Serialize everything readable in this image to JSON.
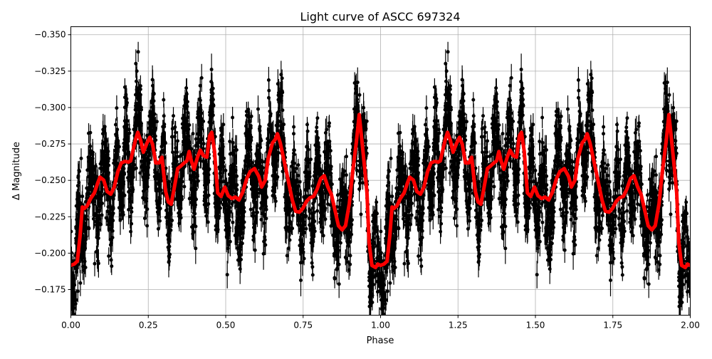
{
  "chart_data": {
    "type": "scatter",
    "title": "Light curve of ASCC 697324",
    "xlabel": "Phase",
    "ylabel": "Δ Magnitude",
    "xlim": [
      0.0,
      2.0
    ],
    "ylim": [
      -0.1574,
      -0.3555
    ],
    "y_inverted": true,
    "grid": true,
    "xticks": [
      "0.00",
      "0.25",
      "0.50",
      "0.75",
      "1.00",
      "1.25",
      "1.50",
      "1.75",
      "2.00"
    ],
    "xtick_values": [
      0,
      0.25,
      0.5,
      0.75,
      1,
      1.25,
      1.5,
      1.75,
      2
    ],
    "yticks": [
      "−0.350",
      "−0.325",
      "−0.300",
      "−0.275",
      "−0.250",
      "−0.225",
      "−0.200",
      "−0.175"
    ],
    "ytick_values": [
      -0.35,
      -0.325,
      -0.3,
      -0.275,
      -0.25,
      -0.225,
      -0.2,
      -0.175
    ],
    "series": [
      {
        "kind": "errorbar-scatter",
        "color": "#000000",
        "description_visible": "dense photometric points with vertical error bars, folded over two phases"
      },
      {
        "kind": "line",
        "color": "#ff0000",
        "x": [
          0,
          0.011,
          0.021,
          0.03,
          0.037,
          0.044,
          0.053,
          0.064,
          0.076,
          0.087,
          0.094,
          0.106,
          0.117,
          0.129,
          0.14,
          0.152,
          0.163,
          0.175,
          0.186,
          0.193,
          0.2,
          0.209,
          0.216,
          0.225,
          0.234,
          0.246,
          0.255,
          0.264,
          0.274,
          0.285,
          0.294,
          0.306,
          0.315,
          0.324,
          0.333,
          0.345,
          0.356,
          0.366,
          0.375,
          0.382,
          0.389,
          0.398,
          0.409,
          0.418,
          0.428,
          0.439,
          0.448,
          0.455,
          0.464,
          0.474,
          0.485,
          0.497,
          0.508,
          0.52,
          0.531,
          0.543,
          0.554,
          0.568,
          0.579,
          0.593,
          0.607,
          0.616,
          0.628,
          0.637,
          0.651,
          0.66,
          0.667,
          0.676,
          0.692,
          0.703,
          0.715,
          0.726,
          0.738,
          0.749,
          0.761,
          0.772,
          0.784,
          0.795,
          0.807,
          0.818,
          0.83,
          0.841,
          0.853,
          0.864,
          0.876,
          0.887,
          0.899,
          0.91,
          0.922,
          0.931,
          0.94,
          0.949,
          0.956,
          0.963,
          0.972,
          0.984,
          0.991,
          1.0,
          1.011,
          1.021,
          1.03,
          1.037,
          1.044,
          1.053,
          1.064,
          1.076,
          1.087,
          1.094,
          1.106,
          1.117,
          1.129,
          1.14,
          1.152,
          1.163,
          1.175,
          1.186,
          1.193,
          1.2,
          1.209,
          1.216,
          1.225,
          1.234,
          1.246,
          1.255,
          1.264,
          1.274,
          1.285,
          1.294,
          1.306,
          1.315,
          1.324,
          1.333,
          1.345,
          1.356,
          1.366,
          1.375,
          1.382,
          1.389,
          1.398,
          1.409,
          1.418,
          1.428,
          1.439,
          1.448,
          1.455,
          1.464,
          1.474,
          1.485,
          1.497,
          1.508,
          1.52,
          1.531,
          1.543,
          1.554,
          1.568,
          1.579,
          1.593,
          1.607,
          1.616,
          1.628,
          1.637,
          1.651,
          1.66,
          1.667,
          1.676,
          1.692,
          1.703,
          1.715,
          1.726,
          1.738,
          1.749,
          1.761,
          1.772,
          1.784,
          1.795,
          1.807,
          1.818,
          1.83,
          1.841,
          1.853,
          1.864,
          1.876,
          1.887,
          1.899,
          1.91,
          1.922,
          1.931,
          1.94,
          1.949,
          1.956,
          1.963,
          1.972,
          1.984,
          1.991,
          2.0
        ],
        "y": [
          -0.1916,
          -0.1925,
          -0.1945,
          -0.2121,
          -0.2317,
          -0.2307,
          -0.2326,
          -0.2375,
          -0.2414,
          -0.2483,
          -0.2522,
          -0.2502,
          -0.2424,
          -0.2405,
          -0.2454,
          -0.2561,
          -0.262,
          -0.263,
          -0.2625,
          -0.2634,
          -0.2698,
          -0.2781,
          -0.283,
          -0.2776,
          -0.2693,
          -0.2757,
          -0.2796,
          -0.2747,
          -0.262,
          -0.262,
          -0.2659,
          -0.2424,
          -0.2351,
          -0.2336,
          -0.2439,
          -0.2581,
          -0.26,
          -0.262,
          -0.2634,
          -0.2698,
          -0.2634,
          -0.2576,
          -0.2659,
          -0.2708,
          -0.2669,
          -0.2659,
          -0.2806,
          -0.283,
          -0.2698,
          -0.2414,
          -0.239,
          -0.2454,
          -0.2395,
          -0.2375,
          -0.2385,
          -0.2365,
          -0.2414,
          -0.2512,
          -0.2561,
          -0.2581,
          -0.2527,
          -0.2454,
          -0.2502,
          -0.2649,
          -0.2757,
          -0.2781,
          -0.282,
          -0.2757,
          -0.26,
          -0.2488,
          -0.2365,
          -0.2287,
          -0.2282,
          -0.2307,
          -0.2356,
          -0.238,
          -0.239,
          -0.2439,
          -0.2512,
          -0.2532,
          -0.2454,
          -0.2405,
          -0.2292,
          -0.2189,
          -0.216,
          -0.2189,
          -0.234,
          -0.2561,
          -0.2767,
          -0.2952,
          -0.2767,
          -0.2576,
          -0.2414,
          -0.2072,
          -0.1916,
          -0.1901,
          -0.1925,
          -0.1916,
          -0.1925,
          -0.1945,
          -0.2121,
          -0.2317,
          -0.2307,
          -0.2326,
          -0.2375,
          -0.2414,
          -0.2483,
          -0.2522,
          -0.2502,
          -0.2424,
          -0.2405,
          -0.2454,
          -0.2561,
          -0.262,
          -0.263,
          -0.2625,
          -0.2634,
          -0.2698,
          -0.2781,
          -0.283,
          -0.2776,
          -0.2693,
          -0.2757,
          -0.2796,
          -0.2747,
          -0.262,
          -0.262,
          -0.2659,
          -0.2424,
          -0.2351,
          -0.2336,
          -0.2439,
          -0.2581,
          -0.26,
          -0.262,
          -0.2634,
          -0.2698,
          -0.2634,
          -0.2576,
          -0.2659,
          -0.2708,
          -0.2669,
          -0.2659,
          -0.2806,
          -0.283,
          -0.2698,
          -0.2414,
          -0.239,
          -0.2454,
          -0.2395,
          -0.2375,
          -0.2385,
          -0.2365,
          -0.2414,
          -0.2512,
          -0.2561,
          -0.2581,
          -0.2527,
          -0.2454,
          -0.2502,
          -0.2649,
          -0.2757,
          -0.2781,
          -0.282,
          -0.2757,
          -0.26,
          -0.2488,
          -0.2365,
          -0.2287,
          -0.2282,
          -0.2307,
          -0.2356,
          -0.238,
          -0.239,
          -0.2439,
          -0.2512,
          -0.2532,
          -0.2454,
          -0.2405,
          -0.2292,
          -0.2189,
          -0.216,
          -0.2189,
          -0.234,
          -0.2561,
          -0.2767,
          -0.2952,
          -0.2767,
          -0.2576,
          -0.2414,
          -0.2072,
          -0.1916,
          -0.1901,
          -0.1925,
          -0.1916
        ]
      }
    ]
  }
}
